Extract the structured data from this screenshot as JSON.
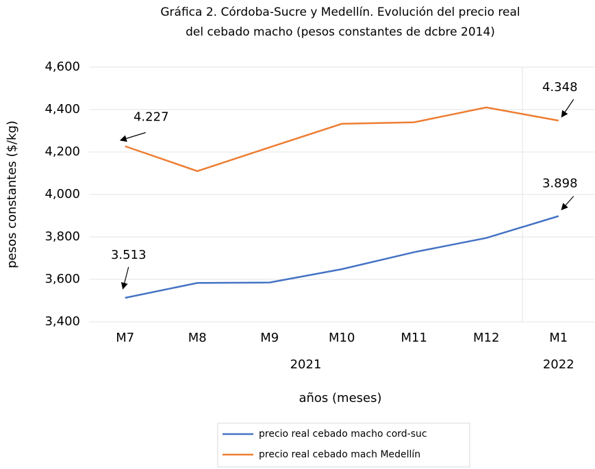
{
  "chart_data": {
    "type": "line",
    "title": [
      "Gráfica 2. Córdoba-Sucre y Medellín. Evolución del precio real",
      "del cebado macho (pesos constantes de dcbre 2014)"
    ],
    "x_label": "años (meses)",
    "y_label": "pesos constantes ($/kg)",
    "categories": [
      "M7",
      "M8",
      "M9",
      "M10",
      "M11",
      "M12",
      "M1"
    ],
    "category_groups": [
      {
        "label": "2021",
        "span": [
          0,
          5
        ]
      },
      {
        "label": "2022",
        "span": [
          6,
          6
        ]
      }
    ],
    "series": [
      {
        "name": "precio real cebado macho cord-suc",
        "color": "#4472c4",
        "values": [
          3513,
          3583,
          3585,
          3648,
          3728,
          3795,
          3898
        ],
        "value_labels": [
          "3.513",
          null,
          null,
          null,
          null,
          null,
          "3.898"
        ]
      },
      {
        "name": "precio real cebado mach Medellín",
        "color": "#ed7d31",
        "values": [
          4227,
          4110,
          4222,
          4333,
          4340,
          4410,
          4348
        ],
        "value_labels": [
          "4.227",
          null,
          null,
          null,
          null,
          null,
          "4.348"
        ]
      }
    ],
    "ylim": [
      3400,
      4600
    ],
    "yticks": [
      {
        "value": 3400,
        "label": "3,400"
      },
      {
        "value": 3600,
        "label": "3,600"
      },
      {
        "value": 3800,
        "label": "3,800"
      },
      {
        "value": 4000,
        "label": "4,000"
      },
      {
        "value": 4200,
        "label": "4,200"
      },
      {
        "value": 4400,
        "label": "4,400"
      },
      {
        "value": 4600,
        "label": "4,600"
      }
    ],
    "grid": true
  }
}
